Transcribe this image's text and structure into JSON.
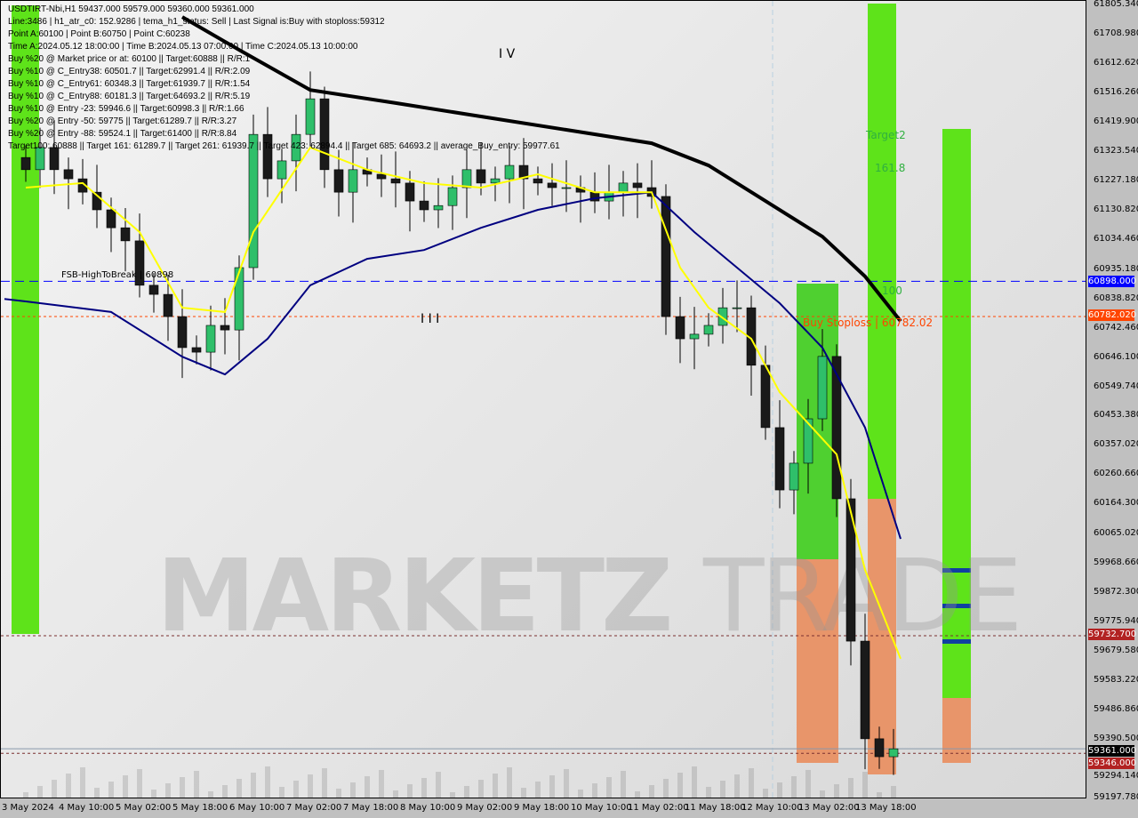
{
  "header": {
    "lines": [
      "USDTIRT-Nbi,H1  59437.000 59579.000 59360.000 59361.000",
      "Line:3486 | h1_atr_c0: 152.9286 | tema_h1_status: Sell | Last Signal is:Buy with stoploss:59312",
      "Point A:60100 | Point B:60750 | Point C:60238",
      "Time A:2024.05.12 18:00:00 | Time B:2024.05.13 07:00:00 | Time C:2024.05.13 10:00:00",
      "Buy %20 @ Market price or at: 60100 || Target:60888 || R/R:1",
      "Buy %10 @ C_Entry38: 60501.7 || Target:62991.4 || R/R:2.09",
      "Buy %10 @ C_Entry61: 60348.3 || Target:61939.7 || R/R:1.54",
      "Buy %10 @ C_Entry88: 60181.3 || Target:64693.2 || R/R:5.19",
      "Buy %10 @ Entry -23: 59946.6 || Target:60998.3 || R/R:1.66",
      "Buy %20 @ Entry -50: 59775 || Target:61289.7 || R/R:3.27",
      "Buy %20 @ Entry -88: 59524.1 || Target:61400 || R/R:8.84",
      "Target100: 60888 || Target 161: 61289.7 || Target 261: 61939.7 || Target 423: 62894.4 || Target 685: 64693.2 || average_Buy_entry: 59977.61"
    ]
  },
  "annotations": {
    "wave_iv": "I V",
    "wave_iii": "I I I",
    "fsb": "FSB-HighToBreak | 60898",
    "buy_stoploss": "Buy Stoploss | 60782.02",
    "target2": "Target2",
    "fib161": "161.8",
    "fib100": "100"
  },
  "watermark": {
    "left": "MARKETZ",
    "right": "TRADE"
  },
  "colors": {
    "bull": "#2fbf6a",
    "bear": "#1a1a1a",
    "ma_slow": "#000000",
    "ma_mid": "#000080",
    "ma_fast": "#ffff00",
    "fsb_line": "#0000ff",
    "stoploss_line": "#ff4500",
    "zone_green": "#5ee31a",
    "zone_orange": "#e8956a"
  },
  "price_tags": [
    {
      "value": "60898.000",
      "price": 60898,
      "color": "#0000ff"
    },
    {
      "value": "60782.020",
      "price": 60782.02,
      "color": "#ff4500"
    },
    {
      "value": "59732.700",
      "price": 59732.7,
      "color": "#b22222"
    },
    {
      "value": "59361.000",
      "price": 59361,
      "color": "#000000"
    },
    {
      "value": "59346.000",
      "price": 59346,
      "color": "#b22222"
    }
  ],
  "chart_data": {
    "type": "candlestick",
    "symbol": "USDTIRT-Nbi",
    "timeframe": "H1",
    "ylim": [
      59197.78,
      61805.34
    ],
    "y_ticks": [
      "61805.340",
      "61708.980",
      "61612.620",
      "61516.260",
      "61419.900",
      "61323.540",
      "61227.180",
      "61130.820",
      "61034.460",
      "60935.180",
      "60838.820",
      "60742.460",
      "60646.100",
      "60549.740",
      "60453.380",
      "60357.020",
      "60260.660",
      "60164.300",
      "60065.020",
      "59968.660",
      "59872.300",
      "59775.940",
      "59679.580",
      "59583.220",
      "59486.860",
      "59390.500",
      "59294.140",
      "59197.780"
    ],
    "x_ticks": [
      {
        "label": "3 May 2024",
        "time": "2024-05-03 18:00"
      },
      {
        "label": "4 May 10:00",
        "time": "2024-05-04 10:00"
      },
      {
        "label": "5 May 02:00",
        "time": "2024-05-05 02:00"
      },
      {
        "label": "5 May 18:00",
        "time": "2024-05-05 18:00"
      },
      {
        "label": "6 May 10:00",
        "time": "2024-05-06 10:00"
      },
      {
        "label": "7 May 02:00",
        "time": "2024-05-07 02:00"
      },
      {
        "label": "7 May 18:00",
        "time": "2024-05-07 18:00"
      },
      {
        "label": "8 May 10:00",
        "time": "2024-05-08 10:00"
      },
      {
        "label": "9 May 02:00",
        "time": "2024-05-09 02:00"
      },
      {
        "label": "9 May 18:00",
        "time": "2024-05-09 18:00"
      },
      {
        "label": "10 May 10:00",
        "time": "2024-05-10 10:00"
      },
      {
        "label": "11 May 02:00",
        "time": "2024-05-11 02:00"
      },
      {
        "label": "11 May 18:00",
        "time": "2024-05-11 18:00"
      },
      {
        "label": "12 May 10:00",
        "time": "2024-05-12 10:00"
      },
      {
        "label": "13 May 02:00",
        "time": "2024-05-13 02:00"
      },
      {
        "label": "13 May 18:00",
        "time": "2024-05-13 18:00"
      }
    ],
    "closes": [
      [
        "2024-05-03 18:00",
        61265
      ],
      [
        "2024-05-03 22:00",
        61338
      ],
      [
        "2024-05-04 02:00",
        61265
      ],
      [
        "2024-05-04 06:00",
        61235
      ],
      [
        "2024-05-04 10:00",
        61191
      ],
      [
        "2024-05-04 14:00",
        61133
      ],
      [
        "2024-05-04 18:00",
        61074
      ],
      [
        "2024-05-04 22:00",
        61031
      ],
      [
        "2024-05-05 02:00",
        60885
      ],
      [
        "2024-05-05 06:00",
        60855
      ],
      [
        "2024-05-05 10:00",
        60782
      ],
      [
        "2024-05-05 14:00",
        60680
      ],
      [
        "2024-05-05 18:00",
        60665
      ],
      [
        "2024-05-05 22:00",
        60753
      ],
      [
        "2024-05-06 02:00",
        60738
      ],
      [
        "2024-05-06 06:00",
        60943
      ],
      [
        "2024-05-06 10:00",
        61381
      ],
      [
        "2024-05-06 14:00",
        61235
      ],
      [
        "2024-05-06 18:00",
        61294
      ],
      [
        "2024-05-06 22:00",
        61381
      ],
      [
        "2024-05-07 02:00",
        61498
      ],
      [
        "2024-05-07 06:00",
        61265
      ],
      [
        "2024-05-07 10:00",
        61191
      ],
      [
        "2024-05-07 14:00",
        61265
      ],
      [
        "2024-05-07 18:00",
        61250
      ],
      [
        "2024-05-07 22:00",
        61235
      ],
      [
        "2024-05-08 02:00",
        61221
      ],
      [
        "2024-05-08 06:00",
        61162
      ],
      [
        "2024-05-08 10:00",
        61133
      ],
      [
        "2024-05-08 14:00",
        61147
      ],
      [
        "2024-05-08 18:00",
        61206
      ],
      [
        "2024-05-08 22:00",
        61265
      ],
      [
        "2024-05-09 02:00",
        61221
      ],
      [
        "2024-05-09 06:00",
        61235
      ],
      [
        "2024-05-09 10:00",
        61279
      ],
      [
        "2024-05-09 14:00",
        61235
      ],
      [
        "2024-05-09 18:00",
        61221
      ],
      [
        "2024-05-09 22:00",
        61206
      ],
      [
        "2024-05-10 02:00",
        61206
      ],
      [
        "2024-05-10 06:00",
        61191
      ],
      [
        "2024-05-10 10:00",
        61162
      ],
      [
        "2024-05-10 14:00",
        61191
      ],
      [
        "2024-05-10 18:00",
        61221
      ],
      [
        "2024-05-10 22:00",
        61206
      ],
      [
        "2024-05-11 02:00",
        61177
      ],
      [
        "2024-05-11 06:00",
        60782
      ],
      [
        "2024-05-11 10:00",
        60709
      ],
      [
        "2024-05-11 14:00",
        60724
      ],
      [
        "2024-05-11 18:00",
        60753
      ],
      [
        "2024-05-11 22:00",
        60811
      ],
      [
        "2024-05-12 02:00",
        60811
      ],
      [
        "2024-05-12 06:00",
        60622
      ],
      [
        "2024-05-12 10:00",
        60417
      ],
      [
        "2024-05-12 14:00",
        60212
      ],
      [
        "2024-05-12 18:00",
        60300
      ],
      [
        "2024-05-12 22:00",
        60446
      ],
      [
        "2024-05-13 02:00",
        60651
      ],
      [
        "2024-05-13 06:00",
        60183
      ],
      [
        "2024-05-13 10:00",
        59715
      ],
      [
        "2024-05-13 14:00",
        59394
      ],
      [
        "2024-05-13 18:00",
        59335
      ],
      [
        "2024-05-13 22:00",
        59361
      ]
    ],
    "series": [
      {
        "role": "ma_slow",
        "points": [
          [
            "2024-05-05 14:00",
            61767
          ],
          [
            "2024-05-06 06:00",
            61659
          ],
          [
            "2024-05-07 02:00",
            61527
          ],
          [
            "2024-05-08 02:00",
            61484
          ],
          [
            "2024-05-09 02:00",
            61440
          ],
          [
            "2024-05-10 02:00",
            61396
          ],
          [
            "2024-05-11 02:00",
            61352
          ],
          [
            "2024-05-11 18:00",
            61279
          ],
          [
            "2024-05-12 10:00",
            61162
          ],
          [
            "2024-05-13 02:00",
            61045
          ],
          [
            "2024-05-13 14:00",
            60914
          ],
          [
            "2024-05-14 00:00",
            60767
          ]
        ]
      },
      {
        "role": "ma_mid",
        "points": [
          [
            "2024-05-03 12:00",
            60840
          ],
          [
            "2024-05-03 18:00",
            60832
          ],
          [
            "2024-05-04 18:00",
            60797
          ],
          [
            "2024-05-05 14:00",
            60650
          ],
          [
            "2024-05-06 02:00",
            60592
          ],
          [
            "2024-05-06 14:00",
            60709
          ],
          [
            "2024-05-07 02:00",
            60885
          ],
          [
            "2024-05-07 18:00",
            60972
          ],
          [
            "2024-05-08 10:00",
            61001
          ],
          [
            "2024-05-09 02:00",
            61074
          ],
          [
            "2024-05-09 18:00",
            61133
          ],
          [
            "2024-05-10 10:00",
            61171
          ],
          [
            "2024-05-11 02:00",
            61191
          ],
          [
            "2024-05-11 14:00",
            61060
          ],
          [
            "2024-05-12 02:00",
            60943
          ],
          [
            "2024-05-12 14:00",
            60826
          ],
          [
            "2024-05-13 02:00",
            60680
          ],
          [
            "2024-05-13 14:00",
            60417
          ],
          [
            "2024-05-14 00:00",
            60051
          ]
        ]
      },
      {
        "role": "ma_fast",
        "points": [
          [
            "2024-05-03 18:00",
            61206
          ],
          [
            "2024-05-04 10:00",
            61221
          ],
          [
            "2024-05-05 02:00",
            61060
          ],
          [
            "2024-05-05 14:00",
            60811
          ],
          [
            "2024-05-06 02:00",
            60797
          ],
          [
            "2024-05-06 10:00",
            61060
          ],
          [
            "2024-05-07 02:00",
            61338
          ],
          [
            "2024-05-07 18:00",
            61265
          ],
          [
            "2024-05-08 10:00",
            61221
          ],
          [
            "2024-05-09 02:00",
            61206
          ],
          [
            "2024-05-09 18:00",
            61250
          ],
          [
            "2024-05-10 10:00",
            61191
          ],
          [
            "2024-05-11 02:00",
            61191
          ],
          [
            "2024-05-11 10:00",
            60943
          ],
          [
            "2024-05-11 18:00",
            60811
          ],
          [
            "2024-05-12 06:00",
            60709
          ],
          [
            "2024-05-12 14:00",
            60533
          ],
          [
            "2024-05-12 22:00",
            60431
          ],
          [
            "2024-05-13 06:00",
            60329
          ],
          [
            "2024-05-13 14:00",
            59949
          ],
          [
            "2024-05-14 00:00",
            59657
          ]
        ]
      }
    ]
  }
}
